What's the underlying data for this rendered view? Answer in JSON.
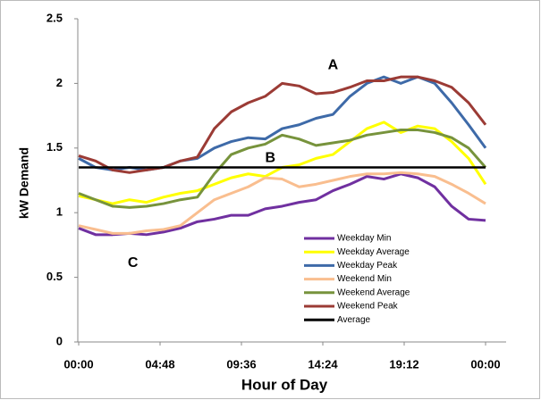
{
  "chart_data": {
    "type": "line",
    "x_label": "Hour of Day",
    "y_label": "kW Demand",
    "x": [
      0,
      1,
      2,
      3,
      4,
      5,
      6,
      7,
      8,
      9,
      10,
      11,
      12,
      13,
      14,
      15,
      16,
      17,
      18,
      19,
      20,
      21,
      22,
      23,
      24
    ],
    "xlim": [
      0,
      24
    ],
    "xticks": [
      {
        "value": 0,
        "label": "00:00"
      },
      {
        "value": 4.8,
        "label": "04:48"
      },
      {
        "value": 9.6,
        "label": "09:36"
      },
      {
        "value": 14.4,
        "label": "14:24"
      },
      {
        "value": 19.2,
        "label": "19:12"
      },
      {
        "value": 24,
        "label": "00:00"
      }
    ],
    "ylim": [
      0,
      2.5
    ],
    "yticks": [
      0,
      0.5,
      1,
      1.5,
      2,
      2.5
    ],
    "grid": false,
    "legend": "center",
    "series": [
      {
        "name": "Weekday Min",
        "color": "#7030a0",
        "values": [
          0.88,
          0.83,
          0.83,
          0.84,
          0.83,
          0.85,
          0.88,
          0.93,
          0.95,
          0.98,
          0.98,
          1.03,
          1.05,
          1.08,
          1.1,
          1.17,
          1.22,
          1.28,
          1.26,
          1.3,
          1.27,
          1.2,
          1.05,
          0.95,
          0.94
        ]
      },
      {
        "name": "Weekday Average",
        "color": "#ffff00",
        "values": [
          1.13,
          1.1,
          1.07,
          1.1,
          1.08,
          1.12,
          1.15,
          1.17,
          1.22,
          1.27,
          1.3,
          1.28,
          1.35,
          1.37,
          1.42,
          1.45,
          1.55,
          1.65,
          1.7,
          1.62,
          1.67,
          1.65,
          1.55,
          1.42,
          1.22
        ]
      },
      {
        "name": "Weekday Peak",
        "color": "#3e6aa8",
        "values": [
          1.42,
          1.35,
          1.33,
          1.35,
          1.33,
          1.35,
          1.4,
          1.42,
          1.5,
          1.55,
          1.58,
          1.57,
          1.65,
          1.68,
          1.73,
          1.76,
          1.9,
          2.0,
          2.05,
          2.0,
          2.05,
          2.0,
          1.85,
          1.68,
          1.5
        ]
      },
      {
        "name": "Weekend Min",
        "color": "#f9be8f",
        "values": [
          0.9,
          0.87,
          0.84,
          0.84,
          0.86,
          0.87,
          0.9,
          1.0,
          1.1,
          1.15,
          1.2,
          1.27,
          1.26,
          1.2,
          1.22,
          1.25,
          1.28,
          1.3,
          1.3,
          1.31,
          1.3,
          1.28,
          1.22,
          1.15,
          1.07
        ]
      },
      {
        "name": "Weekend Average",
        "color": "#77933c",
        "values": [
          1.15,
          1.1,
          1.05,
          1.04,
          1.05,
          1.07,
          1.1,
          1.12,
          1.3,
          1.45,
          1.5,
          1.53,
          1.6,
          1.57,
          1.52,
          1.54,
          1.56,
          1.6,
          1.62,
          1.64,
          1.64,
          1.62,
          1.58,
          1.5,
          1.35
        ]
      },
      {
        "name": "Weekend Peak",
        "color": "#9b3b35",
        "values": [
          1.44,
          1.4,
          1.33,
          1.31,
          1.33,
          1.35,
          1.4,
          1.43,
          1.65,
          1.78,
          1.85,
          1.9,
          2.0,
          1.98,
          1.92,
          1.93,
          1.97,
          2.02,
          2.02,
          2.05,
          2.05,
          2.02,
          1.97,
          1.85,
          1.68
        ]
      },
      {
        "name": "Average",
        "color": "#000000",
        "values": [
          1.35,
          1.35,
          1.35,
          1.35,
          1.35,
          1.35,
          1.35,
          1.35,
          1.35,
          1.35,
          1.35,
          1.35,
          1.35,
          1.35,
          1.35,
          1.35,
          1.35,
          1.35,
          1.35,
          1.35,
          1.35,
          1.35,
          1.35,
          1.35,
          1.35
        ]
      }
    ],
    "annotations": [
      {
        "text": "A",
        "x": 15,
        "y": 2.14
      },
      {
        "text": "B",
        "x": 11.3,
        "y": 1.42
      },
      {
        "text": "C",
        "x": 3.2,
        "y": 0.61
      }
    ]
  }
}
